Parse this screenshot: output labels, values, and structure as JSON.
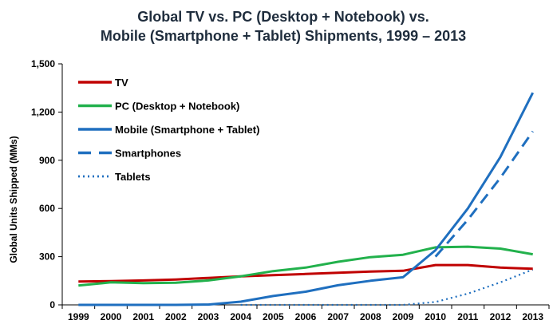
{
  "chart_data": {
    "type": "line",
    "title_lines": [
      "Global TV vs. PC (Desktop + Notebook) vs.",
      "Mobile (Smartphone + Tablet) Shipments, 1999 – 2013"
    ],
    "xlabel": "",
    "ylabel": "Global Units Shipped (MMs)",
    "ylim": [
      0,
      1500
    ],
    "yticks": [
      "0",
      "300",
      "600",
      "900",
      "1,200",
      "1,500"
    ],
    "ytick_values": [
      0,
      300,
      600,
      900,
      1200,
      1500
    ],
    "x": [
      "1999",
      "2000",
      "2001",
      "2002",
      "2003",
      "2004",
      "2005",
      "2006",
      "2007",
      "2008",
      "2009",
      "2010",
      "2011",
      "2012",
      "2013"
    ],
    "grid": false,
    "legend_position": "top-left",
    "series": [
      {
        "name": "TV",
        "color": "#c00000",
        "style": "solid",
        "values": [
          145,
          148,
          152,
          158,
          168,
          178,
          185,
          192,
          200,
          207,
          212,
          248,
          248,
          232,
          225
        ]
      },
      {
        "name": "PC (Desktop + Notebook)",
        "color": "#22b14c",
        "style": "solid",
        "values": [
          120,
          140,
          135,
          138,
          152,
          178,
          210,
          232,
          268,
          297,
          312,
          358,
          362,
          350,
          315
        ]
      },
      {
        "name": "Mobile (Smartphone + Tablet)",
        "color": "#1f6fbf",
        "style": "solid",
        "values": [
          0,
          0,
          0,
          0,
          2,
          20,
          55,
          82,
          122,
          150,
          172,
          340,
          600,
          920,
          1320
        ]
      },
      {
        "name": "Smartphones",
        "color": "#1f6fbf",
        "style": "dashed",
        "values": [
          null,
          null,
          null,
          null,
          null,
          null,
          null,
          null,
          null,
          null,
          null,
          300,
          530,
          790,
          1080
        ]
      },
      {
        "name": "Tablets",
        "color": "#1f6fbf",
        "style": "dotted",
        "values": [
          null,
          null,
          null,
          null,
          null,
          0,
          0,
          0,
          0,
          0,
          0,
          18,
          70,
          140,
          220
        ]
      }
    ]
  }
}
